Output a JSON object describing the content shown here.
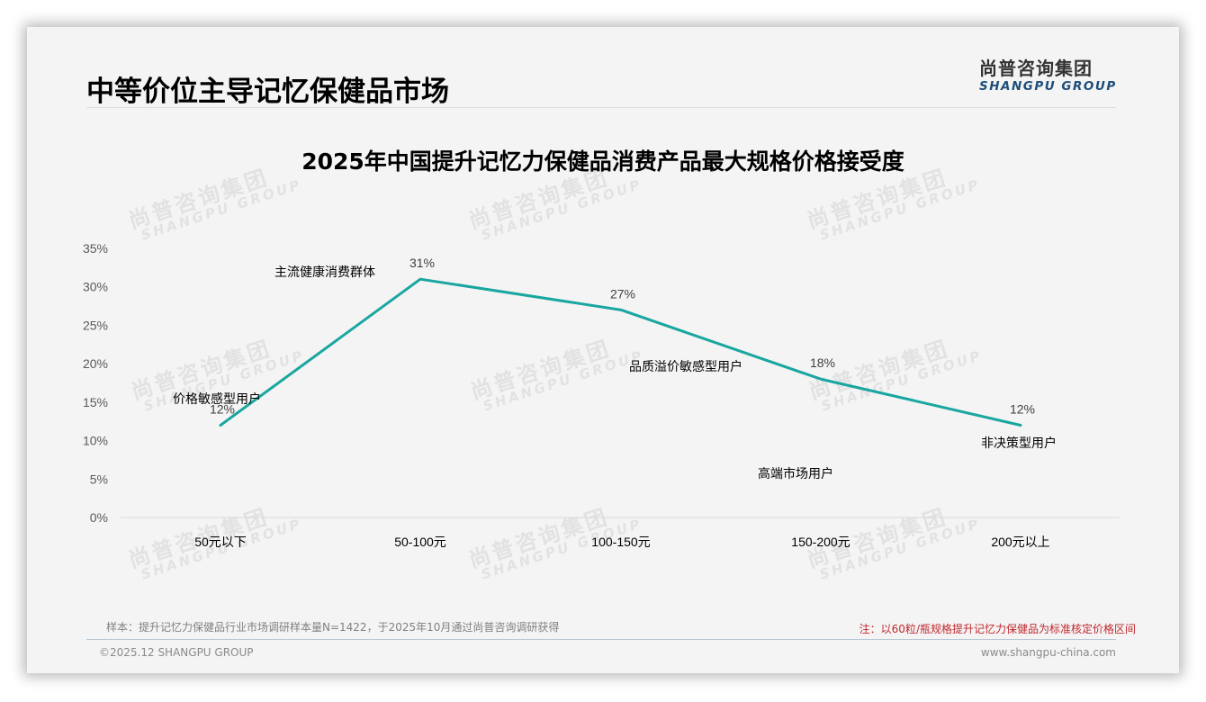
{
  "header": {
    "title": "中等价位主导记忆保健品市场",
    "logo_cn": "尚普咨询集团",
    "logo_en": "SHANGPU GROUP"
  },
  "watermark": {
    "cn": "尚普咨询集团",
    "en": "SHANGPU GROUP"
  },
  "colors": {
    "line": "#1aa6a0",
    "note_red": "#c0282d",
    "logo_blue": "#1f4e79"
  },
  "chart_data": {
    "type": "line",
    "title": "2025年中国提升记忆力保健品消费产品最大规格价格接受度",
    "xlabel": "",
    "ylabel": "",
    "categories": [
      "50元以下",
      "50-100元",
      "100-150元",
      "150-200元",
      "200元以上"
    ],
    "series": [
      {
        "name": "价格接受度",
        "values": [
          12,
          31,
          27,
          18,
          12
        ],
        "value_labels": [
          "12%",
          "31%",
          "27%",
          "18%",
          "12%"
        ]
      }
    ],
    "yticks": [
      "0%",
      "5%",
      "10%",
      "15%",
      "20%",
      "25%",
      "30%",
      "35%"
    ],
    "ylim": [
      0,
      35
    ],
    "grid": false,
    "legend": "none",
    "annotations": [
      {
        "text": "价格敏感型用户",
        "category": "50元以下"
      },
      {
        "text": "主流健康消费群体",
        "category": "50-100元"
      },
      {
        "text": "品质溢价敏感型用户",
        "category": "100-150元"
      },
      {
        "text": "高端市场用户",
        "category": "150-200元"
      },
      {
        "text": "非决策型用户",
        "category": "200元以上"
      }
    ]
  },
  "footer": {
    "sample_note": "样本：提升记忆力保健品行业市场调研样本量N=1422，于2025年10月通过尚普咨询调研获得",
    "price_note": "注：以60粒/瓶规格提升记忆力保健品为标准核定价格区间",
    "copyright": "©2025.12 SHANGPU GROUP",
    "url": "www.shangpu-china.com"
  }
}
